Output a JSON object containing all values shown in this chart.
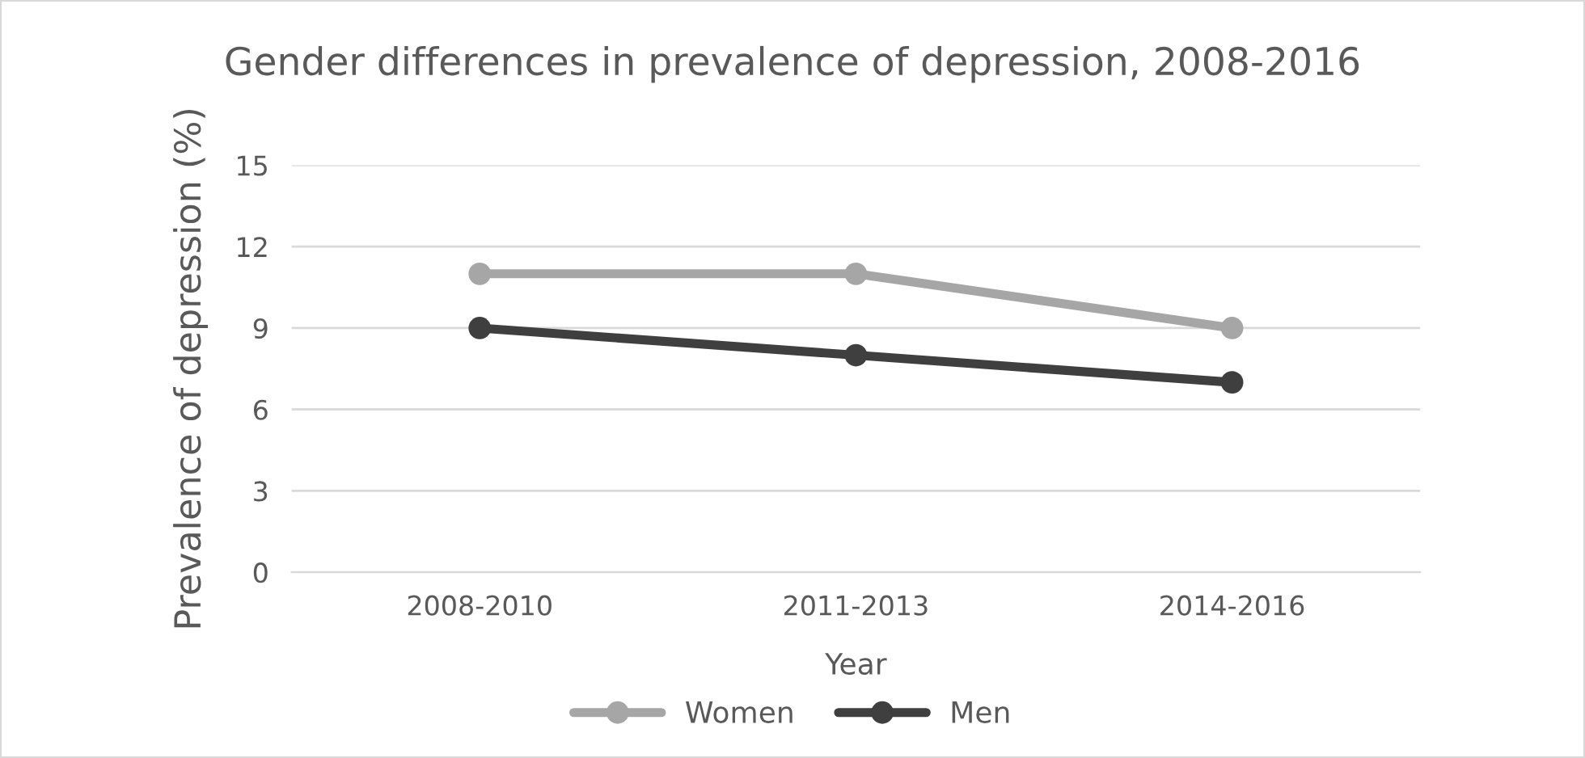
{
  "chart_data": {
    "type": "line",
    "title": "Gender differences in prevalence of depression, 2008-2016",
    "xlabel": "Year",
    "ylabel": "Prevalence of depression (%)",
    "categories": [
      "2008-2010",
      "2011-2013",
      "2014-2016"
    ],
    "series": [
      {
        "name": "Women",
        "color": "#a6a6a6",
        "values": [
          11,
          11,
          9
        ]
      },
      {
        "name": "Men",
        "color": "#3f3f3f",
        "values": [
          9,
          8,
          7
        ]
      }
    ],
    "ylim": [
      0,
      15
    ],
    "yticks": [
      0,
      3,
      6,
      9,
      12,
      15
    ],
    "grid": "y",
    "legend": "bottom",
    "marker": "circle",
    "line_style": "solid"
  }
}
